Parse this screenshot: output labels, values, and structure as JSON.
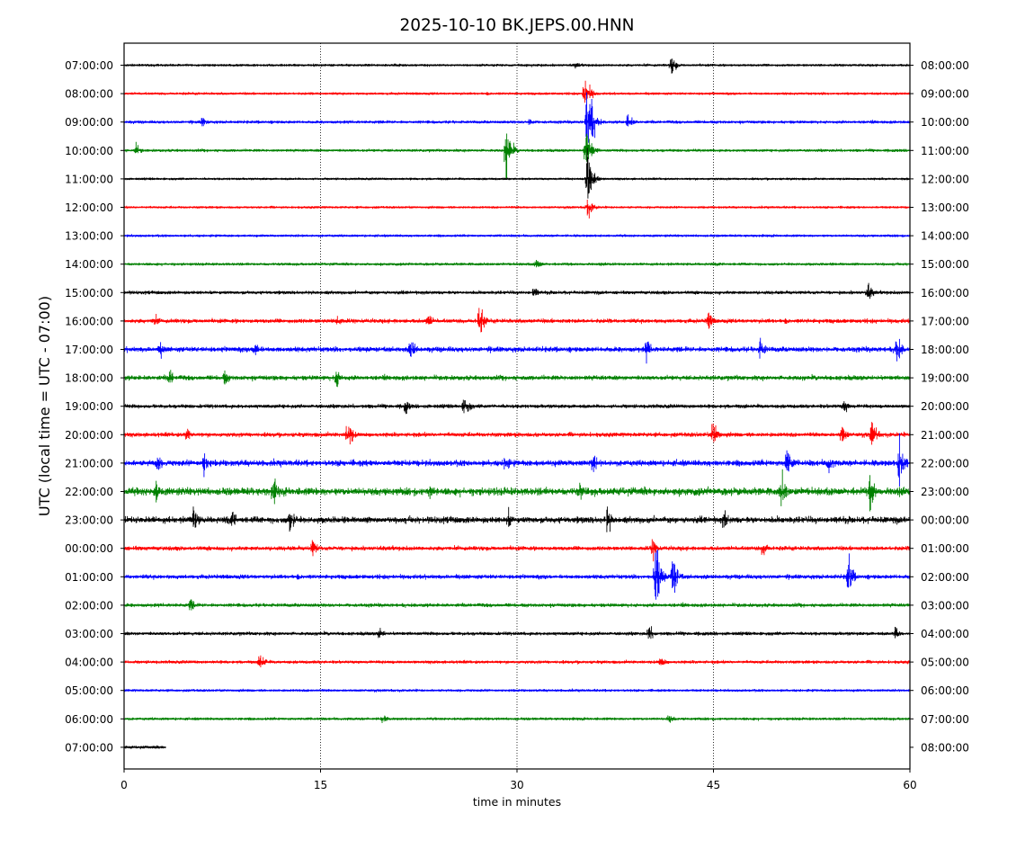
{
  "chart_data": {
    "type": "line",
    "title": "2025-10-10 BK.JEPS.00.HNN",
    "xlabel": "time in minutes",
    "ylabel": "UTC (local time = UTC - 07:00)",
    "xlim": [
      0,
      60
    ],
    "x_ticks": [
      "0",
      "15",
      "30",
      "45",
      "60"
    ],
    "x_tick_values": [
      0,
      15,
      30,
      45,
      60
    ],
    "grid": "vertical dotted lines at 15, 30, 45",
    "trace_colors": [
      "#000000",
      "#ff0000",
      "#0000ff",
      "#008000"
    ],
    "rows_left": [
      "07:00:00",
      "08:00:00",
      "09:00:00",
      "10:00:00",
      "11:00:00",
      "12:00:00",
      "13:00:00",
      "14:00:00",
      "15:00:00",
      "16:00:00",
      "17:00:00",
      "18:00:00",
      "19:00:00",
      "20:00:00",
      "21:00:00",
      "22:00:00",
      "23:00:00",
      "00:00:00",
      "01:00:00",
      "02:00:00",
      "03:00:00",
      "04:00:00",
      "05:00:00",
      "06:00:00",
      "07:00:00"
    ],
    "rows_right": [
      "08:00:00",
      "09:00:00",
      "10:00:00",
      "11:00:00",
      "12:00:00",
      "13:00:00",
      "14:00:00",
      "15:00:00",
      "16:00:00",
      "17:00:00",
      "18:00:00",
      "19:00:00",
      "20:00:00",
      "21:00:00",
      "22:00:00",
      "23:00:00",
      "00:00:00",
      "01:00:00",
      "02:00:00",
      "03:00:00",
      "04:00:00",
      "05:00:00",
      "06:00:00",
      "07:00:00",
      "08:00:00"
    ],
    "noise_levels": [
      0.8,
      0.8,
      1.0,
      0.9,
      0.7,
      0.7,
      0.8,
      0.9,
      1.2,
      1.6,
      2.0,
      1.8,
      1.4,
      1.6,
      2.4,
      3.2,
      2.6,
      1.6,
      1.6,
      1.3,
      1.2,
      1.1,
      0.8,
      0.9,
      1.0
    ],
    "trace_end_minutes": [
      60,
      60,
      60,
      60,
      60,
      60,
      60,
      60,
      60,
      60,
      60,
      60,
      60,
      60,
      60,
      60,
      60,
      60,
      60,
      60,
      60,
      60,
      60,
      60,
      3.2
    ],
    "events": [
      {
        "row": 0,
        "minute": 41.8,
        "amplitude": 10
      },
      {
        "row": 0,
        "minute": 34.5,
        "amplitude": 3
      },
      {
        "row": 1,
        "minute": 35.4,
        "amplitude": 7
      },
      {
        "row": 1,
        "minute": 35.2,
        "amplitude": 22
      },
      {
        "row": 2,
        "minute": 35.4,
        "amplitude": 55
      },
      {
        "row": 2,
        "minute": 38.5,
        "amplitude": 10
      },
      {
        "row": 2,
        "minute": 31.0,
        "amplitude": 5
      },
      {
        "row": 2,
        "minute": 6.0,
        "amplitude": 5
      },
      {
        "row": 3,
        "minute": 29.2,
        "amplitude": 28
      },
      {
        "row": 3,
        "minute": 35.3,
        "amplitude": 30
      },
      {
        "row": 3,
        "minute": 0.9,
        "amplitude": 6
      },
      {
        "row": 4,
        "minute": 35.4,
        "amplitude": 40
      },
      {
        "row": 5,
        "minute": 35.4,
        "amplitude": 12
      },
      {
        "row": 7,
        "minute": 31.5,
        "amplitude": 6
      },
      {
        "row": 8,
        "minute": 56.8,
        "amplitude": 10
      },
      {
        "row": 8,
        "minute": 31.3,
        "amplitude": 6
      },
      {
        "row": 9,
        "minute": 27.1,
        "amplitude": 20
      },
      {
        "row": 9,
        "minute": 44.6,
        "amplitude": 11
      },
      {
        "row": 9,
        "minute": 23.2,
        "amplitude": 9
      },
      {
        "row": 9,
        "minute": 2.3,
        "amplitude": 7
      },
      {
        "row": 9,
        "minute": 16.3,
        "amplitude": 7
      },
      {
        "row": 10,
        "minute": 59.0,
        "amplitude": 16
      },
      {
        "row": 10,
        "minute": 39.9,
        "amplitude": 12
      },
      {
        "row": 10,
        "minute": 21.9,
        "amplitude": 14
      },
      {
        "row": 10,
        "minute": 48.6,
        "amplitude": 12
      },
      {
        "row": 10,
        "minute": 10.0,
        "amplitude": 12
      },
      {
        "row": 10,
        "minute": 2.8,
        "amplitude": 8
      },
      {
        "row": 11,
        "minute": 16.2,
        "amplitude": 12
      },
      {
        "row": 11,
        "minute": 3.5,
        "amplitude": 9
      },
      {
        "row": 11,
        "minute": 7.7,
        "amplitude": 8
      },
      {
        "row": 12,
        "minute": 26.0,
        "amplitude": 13
      },
      {
        "row": 12,
        "minute": 21.5,
        "amplitude": 8
      },
      {
        "row": 12,
        "minute": 55.0,
        "amplitude": 8
      },
      {
        "row": 13,
        "minute": 17.1,
        "amplitude": 17
      },
      {
        "row": 13,
        "minute": 45.0,
        "amplitude": 17
      },
      {
        "row": 13,
        "minute": 57.1,
        "amplitude": 17
      },
      {
        "row": 13,
        "minute": 54.8,
        "amplitude": 12
      },
      {
        "row": 13,
        "minute": 4.8,
        "amplitude": 9
      },
      {
        "row": 14,
        "minute": 59.2,
        "amplitude": 25
      },
      {
        "row": 14,
        "minute": 50.6,
        "amplitude": 20
      },
      {
        "row": 14,
        "minute": 6.1,
        "amplitude": 15
      },
      {
        "row": 14,
        "minute": 2.5,
        "amplitude": 12
      },
      {
        "row": 14,
        "minute": 29.1,
        "amplitude": 12
      },
      {
        "row": 14,
        "minute": 35.8,
        "amplitude": 11
      },
      {
        "row": 14,
        "minute": 53.8,
        "amplitude": 12
      },
      {
        "row": 15,
        "minute": 57.0,
        "amplitude": 22
      },
      {
        "row": 15,
        "minute": 50.2,
        "amplitude": 20
      },
      {
        "row": 15,
        "minute": 2.4,
        "amplitude": 14
      },
      {
        "row": 15,
        "minute": 11.4,
        "amplitude": 16
      },
      {
        "row": 15,
        "minute": 34.8,
        "amplitude": 10
      },
      {
        "row": 15,
        "minute": 23.4,
        "amplitude": 10
      },
      {
        "row": 16,
        "minute": 5.3,
        "amplitude": 15
      },
      {
        "row": 16,
        "minute": 12.7,
        "amplitude": 16
      },
      {
        "row": 16,
        "minute": 36.9,
        "amplitude": 15
      },
      {
        "row": 16,
        "minute": 8.3,
        "amplitude": 10
      },
      {
        "row": 16,
        "minute": 29.3,
        "amplitude": 11
      },
      {
        "row": 16,
        "minute": 45.8,
        "amplitude": 10
      },
      {
        "row": 17,
        "minute": 14.4,
        "amplitude": 10
      },
      {
        "row": 17,
        "minute": 40.4,
        "amplitude": 12
      },
      {
        "row": 17,
        "minute": 48.8,
        "amplitude": 10
      },
      {
        "row": 18,
        "minute": 40.6,
        "amplitude": 42
      },
      {
        "row": 18,
        "minute": 41.9,
        "amplitude": 28
      },
      {
        "row": 18,
        "minute": 55.3,
        "amplitude": 20
      },
      {
        "row": 19,
        "minute": 5.1,
        "amplitude": 7
      },
      {
        "row": 20,
        "minute": 40.1,
        "amplitude": 9
      },
      {
        "row": 20,
        "minute": 19.5,
        "amplitude": 7
      },
      {
        "row": 20,
        "minute": 58.9,
        "amplitude": 8
      },
      {
        "row": 21,
        "minute": 10.4,
        "amplitude": 10
      },
      {
        "row": 21,
        "minute": 41.0,
        "amplitude": 7
      },
      {
        "row": 23,
        "minute": 19.7,
        "amplitude": 5
      },
      {
        "row": 23,
        "minute": 41.6,
        "amplitude": 5
      }
    ]
  }
}
